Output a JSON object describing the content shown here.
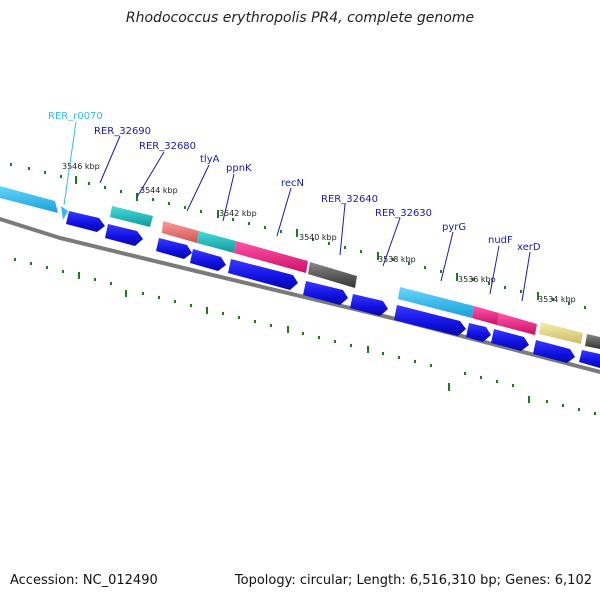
{
  "title": "Rhodococcus erythropolis PR4, complete genome",
  "footer": {
    "accession": "Accession: NC_012490",
    "summary": "Topology: circular; Length: 6,516,310 bp; Genes: 6,102"
  },
  "scale_labels": [
    "3546 kbp",
    "3544 kbp",
    "3542 kbp",
    "3540 kbp",
    "3538 kbp",
    "3536 kbp",
    "3534 kbp"
  ],
  "gene_labels": [
    {
      "text": "RER_r0070",
      "color": "#33bbee"
    },
    {
      "text": "RER_32690",
      "color": "#1a1aaa"
    },
    {
      "text": "RER_32680",
      "color": "#1a1aaa"
    },
    {
      "text": "tlyA",
      "color": "#1a1aaa"
    },
    {
      "text": "ppnK",
      "color": "#1a1aaa"
    },
    {
      "text": "recN",
      "color": "#1a1aaa"
    },
    {
      "text": "RER_32640",
      "color": "#1a1aaa"
    },
    {
      "text": "RER_32630",
      "color": "#1a1aaa"
    },
    {
      "text": "pyrG",
      "color": "#1a1aaa"
    },
    {
      "text": "nudF",
      "color": "#1a1aaa"
    },
    {
      "text": "xerD",
      "color": "#1a1aaa"
    }
  ],
  "colors": {
    "cds": "#1010e0",
    "backbone": "#7a7a7a",
    "tick": "#1e7a1e",
    "cyan": "#33bbee",
    "teal": "#22c0c0",
    "salmon": "#ee7777",
    "magenta": "#ee2288",
    "gray": "#555555",
    "yellow": "#eedd88"
  }
}
